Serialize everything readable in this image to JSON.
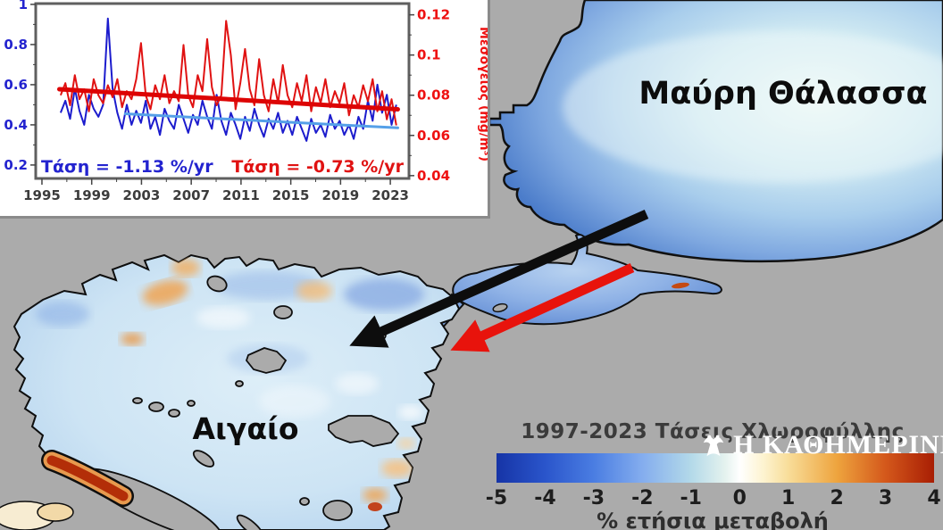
{
  "map": {
    "land_color": "#ababab",
    "labels": {
      "black_sea": "Μαύρη Θάλασσα",
      "aegean": "Αιγαίο"
    },
    "arrows": [
      {
        "name": "black-flow-arrow",
        "color": "#0d0d0d"
      },
      {
        "name": "red-flow-arrow",
        "color": "#e8130c"
      }
    ]
  },
  "chart_data": {
    "type": "line",
    "title": "",
    "x_start": 1996.5,
    "x_step": 0.38,
    "x_range": [
      1994.5,
      2024.5
    ],
    "x_ticks": [
      1995,
      1999,
      2003,
      2007,
      2011,
      2015,
      2019,
      2023
    ],
    "plot": {
      "x": [
        40,
        458
      ],
      "y": [
        4,
        200
      ]
    },
    "left_axis": {
      "color": "#2323cf",
      "ticks": [
        0.2,
        0.4,
        0.6,
        0.8,
        1
      ],
      "range": [
        0.133,
        1.004
      ]
    },
    "right_axis": {
      "color": "#ee1111",
      "label": "Μεσόγειος (mg/m³)",
      "ticks": [
        0.04,
        0.06,
        0.08,
        0.1,
        0.12
      ],
      "range": [
        0.0386,
        0.1256
      ]
    },
    "series": [
      {
        "name": "Μαύρη Θάλασσα",
        "axis": "left",
        "color": "#1c1ccd",
        "values": [
          0.46,
          0.52,
          0.43,
          0.58,
          0.47,
          0.4,
          0.55,
          0.48,
          0.44,
          0.5,
          0.93,
          0.58,
          0.46,
          0.38,
          0.5,
          0.4,
          0.47,
          0.41,
          0.52,
          0.38,
          0.44,
          0.35,
          0.48,
          0.42,
          0.38,
          0.5,
          0.43,
          0.36,
          0.45,
          0.4,
          0.52,
          0.44,
          0.38,
          0.55,
          0.42,
          0.35,
          0.46,
          0.4,
          0.33,
          0.44,
          0.37,
          0.48,
          0.4,
          0.34,
          0.43,
          0.38,
          0.46,
          0.36,
          0.42,
          0.35,
          0.44,
          0.38,
          0.32,
          0.43,
          0.36,
          0.4,
          0.34,
          0.45,
          0.38,
          0.42,
          0.35,
          0.4,
          0.33,
          0.44,
          0.38,
          0.52,
          0.42,
          0.6,
          0.46,
          0.55,
          0.4,
          0.5
        ]
      },
      {
        "name": "Μεσόγειος",
        "axis": "right",
        "color": "#e01212",
        "values": [
          0.08,
          0.086,
          0.075,
          0.09,
          0.078,
          0.083,
          0.072,
          0.088,
          0.08,
          0.076,
          0.085,
          0.079,
          0.088,
          0.074,
          0.082,
          0.078,
          0.088,
          0.106,
          0.08,
          0.073,
          0.085,
          0.078,
          0.09,
          0.076,
          0.082,
          0.077,
          0.105,
          0.08,
          0.074,
          0.09,
          0.082,
          0.108,
          0.084,
          0.075,
          0.08,
          0.117,
          0.1,
          0.073,
          0.086,
          0.103,
          0.083,
          0.075,
          0.098,
          0.08,
          0.072,
          0.088,
          0.076,
          0.095,
          0.08,
          0.074,
          0.086,
          0.077,
          0.09,
          0.072,
          0.084,
          0.076,
          0.088,
          0.074,
          0.082,
          0.076,
          0.086,
          0.07,
          0.08,
          0.074,
          0.085,
          0.077,
          0.088,
          0.072,
          0.082,
          0.068,
          0.078,
          0.065
        ]
      }
    ],
    "trends": [
      {
        "series": "Μαύρη Θάλασσα",
        "axis": "left",
        "color": "#55a0e8",
        "width": 3,
        "x": [
          2001.7,
          2023.6
        ],
        "y": [
          0.455,
          0.385
        ]
      },
      {
        "series": "Μεσόγειος",
        "axis": "right",
        "color": "#dd0404",
        "width": 5,
        "x": [
          1996.4,
          2023.6
        ],
        "y": [
          0.083,
          0.073
        ]
      }
    ],
    "annotations": [
      {
        "text": "Τάση = -1.13 %/yr",
        "color": "#2323cf",
        "x": 46,
        "y": 193,
        "anchor": "start"
      },
      {
        "text": "Τάση = -0.73 %/yr",
        "color": "#e01212",
        "x": 452,
        "y": 193,
        "anchor": "end"
      }
    ]
  },
  "colorbar": {
    "title": "1997-2023 Τάσεις Χλωροφύλλης",
    "unit_label": "% ετήσια μεταβολή",
    "ticks": [
      -5,
      -4,
      -3,
      -2,
      -1,
      0,
      1,
      2,
      3,
      4
    ],
    "range": [
      -5,
      4
    ],
    "stops": [
      {
        "v": -5,
        "c": "#1634a6"
      },
      {
        "v": -4,
        "c": "#2a55cb"
      },
      {
        "v": -3,
        "c": "#4a7de2"
      },
      {
        "v": -2,
        "c": "#84adee"
      },
      {
        "v": -1,
        "c": "#b3d9e9"
      },
      {
        "v": -0.3,
        "c": "#e4f2ee"
      },
      {
        "v": 0,
        "c": "#ffffff"
      },
      {
        "v": 0.5,
        "c": "#fdf3cf"
      },
      {
        "v": 1,
        "c": "#f8dd99"
      },
      {
        "v": 2,
        "c": "#eea43e"
      },
      {
        "v": 3,
        "c": "#d4581b"
      },
      {
        "v": 4,
        "c": "#a81e04"
      }
    ]
  },
  "watermark": {
    "text": "Η ΚΑΘΗΜΕΡΙΝΗ",
    "logo": "double-headed-eagle"
  }
}
